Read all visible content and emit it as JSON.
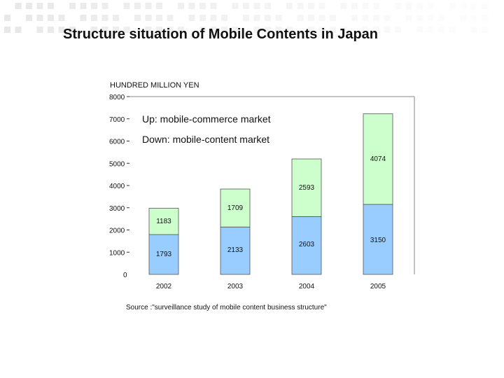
{
  "title": "Structure situation of Mobile Contents in Japan",
  "unit_label": "HUNDRED MILLION YEN",
  "note_up": "Up: mobile-commerce market",
  "note_down": "Down: mobile-content market",
  "source": "Source :\"surveillance study of mobile content business structure\"",
  "colors": {
    "content": "#99ccff",
    "commerce": "#ccffcc",
    "decor": "#e8e8e8"
  },
  "chart_data": {
    "type": "bar",
    "stacked": true,
    "categories": [
      "2002",
      "2003",
      "2004",
      "2005"
    ],
    "series": [
      {
        "name": "mobile-content market",
        "values": [
          1793,
          2133,
          2603,
          3150
        ]
      },
      {
        "name": "mobile-commerce market",
        "values": [
          1183,
          1709,
          2593,
          4074
        ]
      }
    ],
    "ylim": [
      0,
      8000
    ],
    "yticks": [
      0,
      1000,
      2000,
      3000,
      4000,
      5000,
      6000,
      7000,
      8000
    ],
    "ylabel": "HUNDRED MILLION YEN",
    "grid": false,
    "legend": "none"
  }
}
